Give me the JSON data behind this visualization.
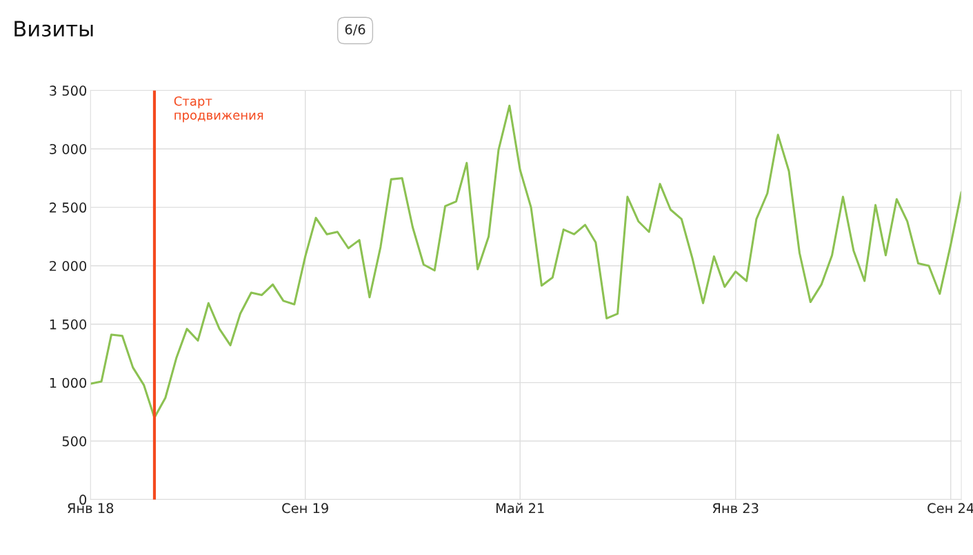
{
  "chart_data": {
    "type": "line",
    "title": "Визиты",
    "annotations": [
      "6/6"
    ],
    "x": [
      "2018-01",
      "2018-02",
      "2018-03",
      "2018-04",
      "2018-05",
      "2018-06",
      "2018-07",
      "2018-08",
      "2018-09",
      "2018-10",
      "2018-11",
      "2018-12",
      "2019-01",
      "2019-02",
      "2019-03",
      "2019-04",
      "2019-05",
      "2019-06",
      "2019-07",
      "2019-08",
      "2019-09",
      "2019-10",
      "2019-11",
      "2019-12",
      "2020-01",
      "2020-02",
      "2020-03",
      "2020-04",
      "2020-05",
      "2020-06",
      "2020-07",
      "2020-08",
      "2020-09",
      "2020-10",
      "2020-11",
      "2020-12",
      "2021-01",
      "2021-02",
      "2021-03",
      "2021-04",
      "2021-05",
      "2021-06",
      "2021-07",
      "2021-08",
      "2021-09",
      "2021-10",
      "2021-11",
      "2021-12",
      "2022-01",
      "2022-02",
      "2022-03",
      "2022-04",
      "2022-05",
      "2022-06",
      "2022-07",
      "2022-08",
      "2022-09",
      "2022-10",
      "2022-11",
      "2022-12",
      "2023-01",
      "2023-02",
      "2023-03",
      "2023-04",
      "2023-05",
      "2023-06",
      "2023-07",
      "2023-08",
      "2023-09",
      "2023-10",
      "2023-11",
      "2023-12",
      "2024-01",
      "2024-02",
      "2024-03",
      "2024-04",
      "2024-05",
      "2024-06",
      "2024-07",
      "2024-08",
      "2024-09",
      "2024-10"
    ],
    "series": [
      {
        "color": "#8cc152",
        "values": [
          990,
          1010,
          1410,
          1400,
          1130,
          980,
          700,
          870,
          1210,
          1460,
          1360,
          1680,
          1460,
          1320,
          1590,
          1770,
          1750,
          1840,
          1700,
          1670,
          2080,
          2410,
          2270,
          2290,
          2150,
          2220,
          1730,
          2160,
          2740,
          2750,
          2330,
          2010,
          1960,
          2510,
          2550,
          2880,
          1970,
          2250,
          2990,
          3370,
          2820,
          2500,
          1830,
          1900,
          2310,
          2270,
          2350,
          2200,
          1550,
          1590,
          2590,
          2380,
          2290,
          2700,
          2480,
          2400,
          2060,
          1680,
          2080,
          1820,
          1950,
          1870,
          2400,
          2620,
          3120,
          2810,
          2110,
          1690,
          1840,
          2090,
          2590,
          2130,
          1870,
          2520,
          2090,
          2570,
          2380,
          2020,
          2000,
          1760,
          2180,
          2630
        ]
      }
    ],
    "xlim": [
      "2018-01",
      "2024-10"
    ],
    "xticks": [
      {
        "value": "2018-01",
        "label": "Янв 18"
      },
      {
        "value": "2019-09",
        "label": "Сен 19"
      },
      {
        "value": "2021-05",
        "label": "Май 21"
      },
      {
        "value": "2023-01",
        "label": "Янв 23"
      },
      {
        "value": "2024-09",
        "label": "Сен 24"
      }
    ],
    "ylim": [
      0,
      3500
    ],
    "yticks": [
      0,
      500,
      {
        "value": 1000,
        "label": "1 000"
      },
      {
        "value": 1500,
        "label": "1 500"
      },
      {
        "value": 2000,
        "label": "2 000"
      },
      {
        "value": 2500,
        "label": "2 500"
      },
      {
        "value": 3000,
        "label": "3 000"
      },
      {
        "value": 3500,
        "label": "3 500"
      }
    ],
    "ref_lines": [
      {
        "axis": "x",
        "value": "2018-07",
        "label": "Старт\nпродвижения",
        "color": "#f44a1f"
      }
    ],
    "grid": true,
    "marker": "none",
    "line_style": "solid"
  }
}
